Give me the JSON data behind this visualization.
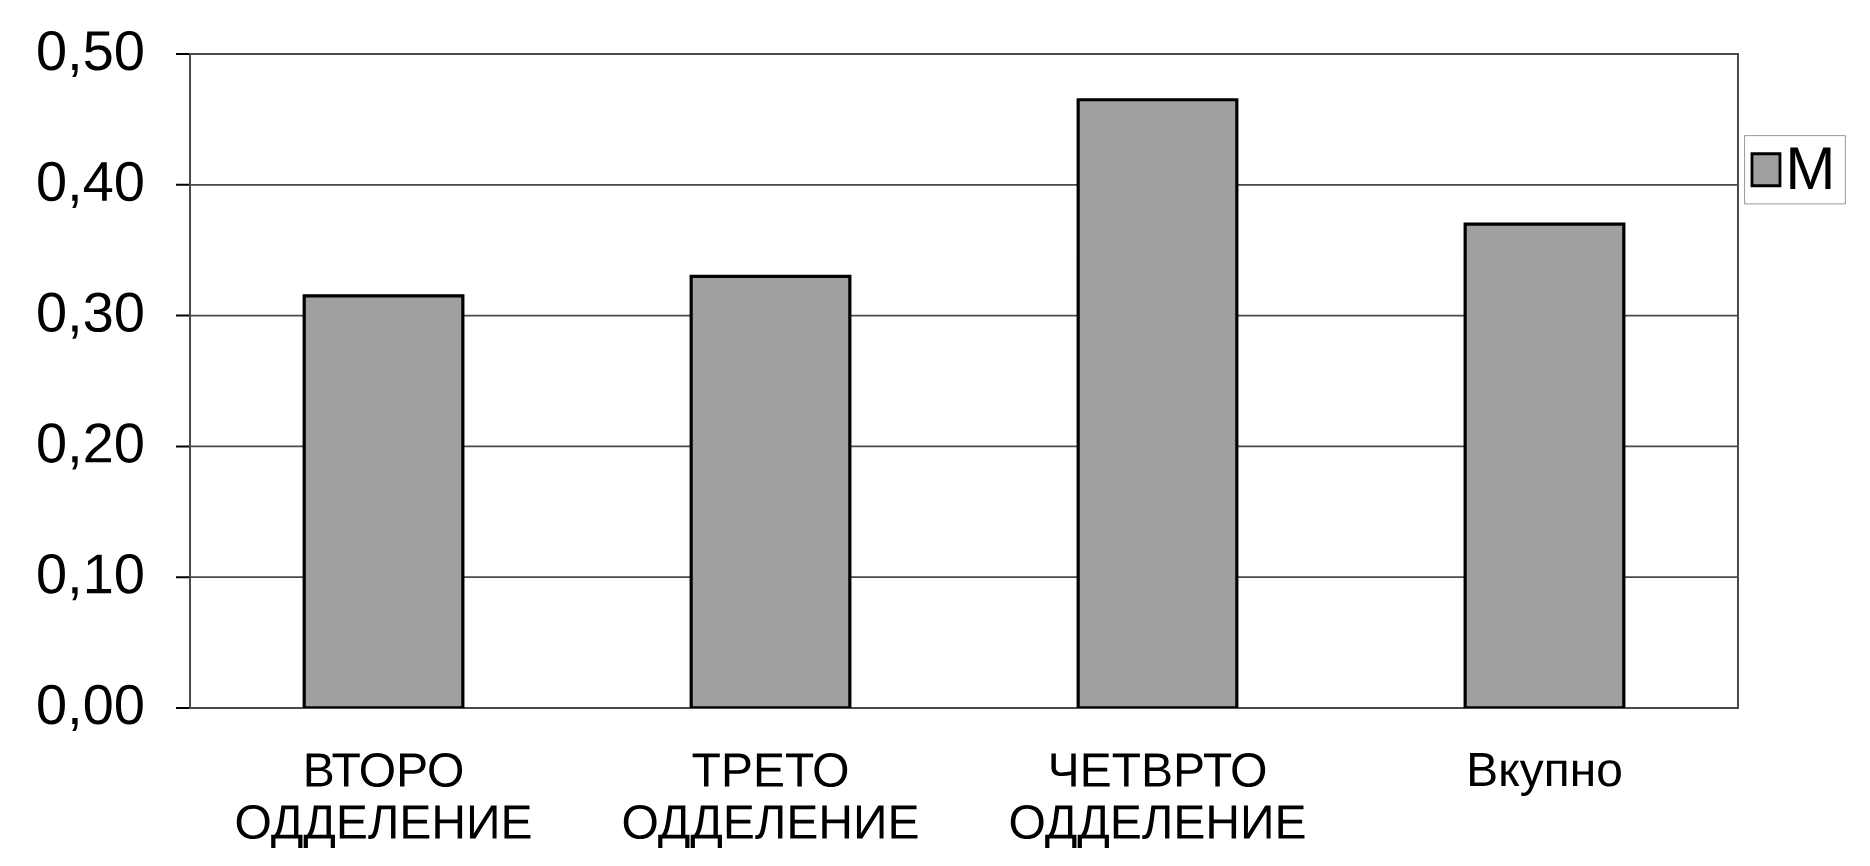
{
  "chart_data": {
    "type": "bar",
    "categories": [
      "ВТОРО ОДДЕЛЕНИЕ",
      "ТРЕТО ОДДЕЛЕНИЕ",
      "ЧЕТВРТО ОДДЕЛЕНИЕ",
      "Вкупно"
    ],
    "series": [
      {
        "name": "M",
        "color": "#a0a0a0",
        "values": [
          0.315,
          0.33,
          0.465,
          0.37
        ]
      }
    ],
    "ylim": [
      0,
      0.5
    ],
    "yticks": [
      {
        "value": 0,
        "label": "0,00"
      },
      {
        "value": 0.1,
        "label": "0,10"
      },
      {
        "value": 0.2,
        "label": "0,20"
      },
      {
        "value": 0.3,
        "label": "0,30"
      },
      {
        "value": 0.4,
        "label": "0,40"
      },
      {
        "value": 0.5,
        "label": "0,50"
      }
    ],
    "grid": "y",
    "legend": "right"
  }
}
